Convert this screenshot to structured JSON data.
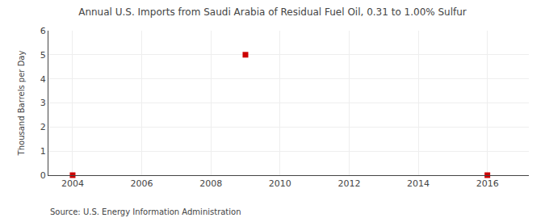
{
  "chart_data": {
    "type": "scatter",
    "title": "Annual U.S. Imports from Saudi Arabia of Residual Fuel Oil, 0.31 to 1.00% Sulfur",
    "ylabel": "Thousand Barrels per Day",
    "annotations": [
      "Source: U.S. Energy Information Administration"
    ],
    "x": [
      2004,
      2009,
      2016
    ],
    "values": [
      0.0,
      5.0,
      0.0
    ],
    "color": "#CC0000",
    "marker": "square",
    "xlim": [
      2003.3,
      2017.2
    ],
    "xticks": [
      2004,
      2006,
      2008,
      2010,
      2012,
      2014,
      2016
    ],
    "ylim": [
      0,
      6
    ],
    "yticks": [
      0,
      1,
      2,
      3,
      4,
      5,
      6
    ],
    "grid": true
  }
}
